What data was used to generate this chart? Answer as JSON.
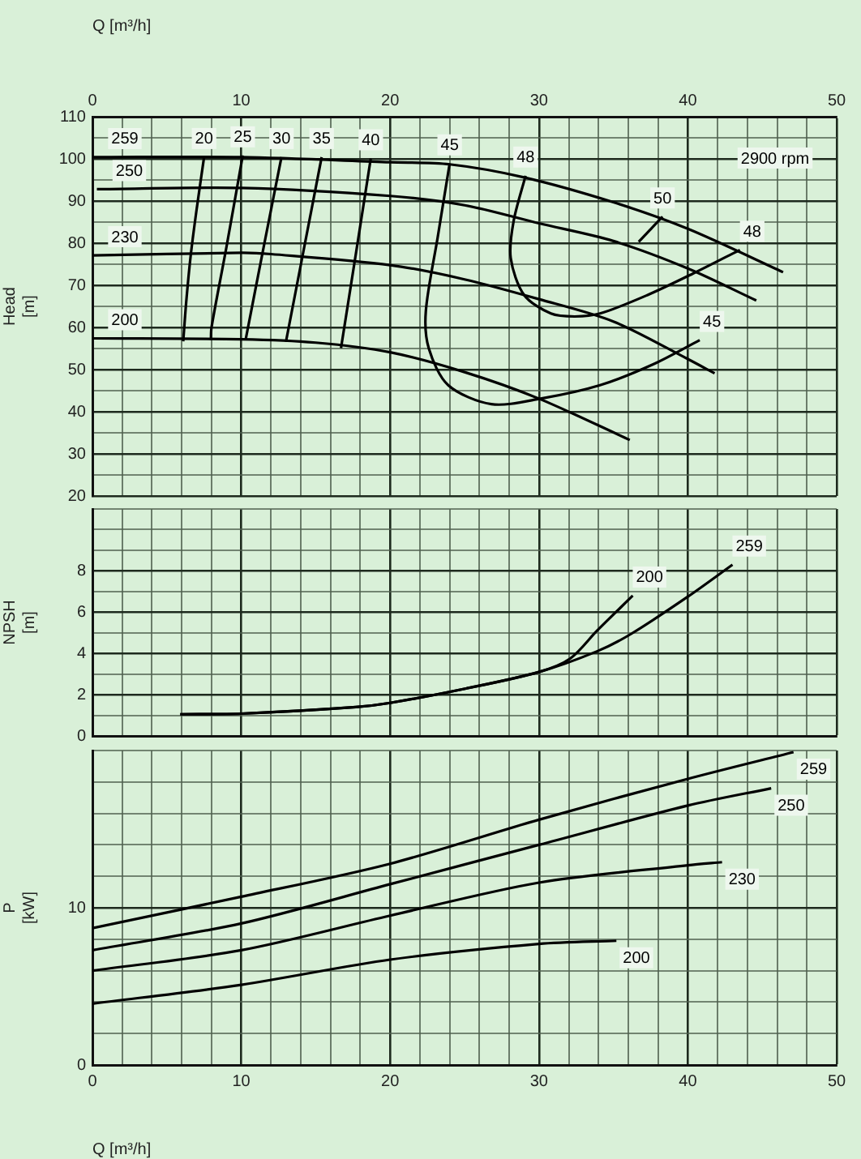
{
  "chart_data": [
    {
      "type": "line",
      "ylabel": "Head [m]",
      "xlabel": "Q [m³/h]",
      "xlim": [
        0,
        50
      ],
      "xticks": [
        0,
        {
          "value": 2,
          "label": null
        },
        {
          "value": 4,
          "label": null
        },
        {
          "value": 6,
          "label": null
        },
        {
          "value": 8,
          "label": null
        },
        10,
        {
          "value": 12,
          "label": null
        },
        {
          "value": 14,
          "label": null
        },
        {
          "value": 16,
          "label": null
        },
        {
          "value": 18,
          "label": null
        },
        20,
        {
          "value": 22,
          "label": null
        },
        {
          "value": 24,
          "label": null
        },
        {
          "value": 26,
          "label": null
        },
        {
          "value": 28,
          "label": null
        },
        30,
        {
          "value": 32,
          "label": null
        },
        {
          "value": 34,
          "label": null
        },
        {
          "value": 36,
          "label": null
        },
        {
          "value": 38,
          "label": null
        },
        40,
        {
          "value": 42,
          "label": null
        },
        {
          "value": 44,
          "label": null
        },
        {
          "value": 46,
          "label": null
        },
        {
          "value": 48,
          "label": null
        },
        50
      ],
      "ylim": [
        20,
        110
      ],
      "yticks": [
        20,
        {
          "value": 25,
          "label": null
        },
        30,
        {
          "value": 35,
          "label": null
        },
        40,
        {
          "value": 45,
          "label": null
        },
        50,
        {
          "value": 55,
          "label": null
        },
        60,
        {
          "value": 65,
          "label": null
        },
        70,
        {
          "value": 75,
          "label": null
        },
        80,
        {
          "value": 85,
          "label": null
        },
        90,
        {
          "value": 95,
          "label": null
        },
        100,
        {
          "value": 105,
          "label": null
        },
        110
      ],
      "grid": true,
      "marker": "none",
      "series": [
        {
          "name": "259",
          "color": "#000000",
          "x": [
            0,
            10,
            20,
            24,
            29,
            35,
            40,
            46.4
          ],
          "values": [
            100.4,
            100.4,
            99.2,
            98.7,
            95.6,
            89.7,
            83.4,
            73.1
          ]
        },
        {
          "name": "250",
          "color": "#000000",
          "x": [
            0.3,
            10,
            20,
            25,
            30,
            35,
            40,
            44.6
          ],
          "values": [
            92.8,
            93.1,
            91.2,
            89,
            84.7,
            80.5,
            74,
            66.4
          ]
        },
        {
          "name": "230",
          "color": "#000000",
          "x": [
            0,
            10,
            12,
            20,
            25,
            30,
            35,
            40,
            41.8
          ],
          "values": [
            77.1,
            77.7,
            77.4,
            74.8,
            71.4,
            66.7,
            61.4,
            52.5,
            49.1
          ]
        },
        {
          "name": "200",
          "color": "#000000",
          "x": [
            0,
            10,
            15,
            20,
            25,
            30,
            36.1
          ],
          "values": [
            57.4,
            57.2,
            56.4,
            54.1,
            49.4,
            43.1,
            33.3
          ]
        },
        {
          "name": "20",
          "color": "#000000",
          "x": [
            7.5,
            7,
            6.6,
            6.3,
            6.1
          ],
          "values": [
            100.4,
            88,
            77,
            66,
            56.7
          ]
        },
        {
          "name": "25",
          "color": "#000000",
          "x": [
            10.1,
            9,
            8,
            7.96
          ],
          "values": [
            100.8,
            79,
            60,
            57
          ]
        },
        {
          "name": "30",
          "color": "#000000",
          "x": [
            12.7,
            11.5,
            10.3
          ],
          "values": [
            100.4,
            79,
            57.2
          ]
        },
        {
          "name": "35",
          "color": "#000000",
          "x": [
            15.4,
            14.2,
            13
          ],
          "values": [
            100.4,
            78.5,
            56.6
          ]
        },
        {
          "name": "40",
          "color": "#000000",
          "x": [
            18.7,
            17.7,
            16.7
          ],
          "values": [
            100.1,
            77.5,
            55.1
          ]
        },
        {
          "name": "45",
          "color": "#000000",
          "x": [
            24,
            23.2,
            22.4,
            22.6,
            23.9,
            26.8,
            30.1,
            34.1,
            37.7,
            40.8
          ],
          "values": [
            98.9,
            81.5,
            63.9,
            55,
            46.3,
            41.8,
            43.1,
            46.3,
            51.3,
            57
          ]
        },
        {
          "name": "48",
          "color": "#000000",
          "x": [
            29.1,
            28.3,
            28.1,
            29,
            30.8,
            32.4,
            34.1,
            37.3,
            40.3,
            43.5
          ],
          "values": [
            96,
            85.3,
            76.5,
            67.7,
            63.3,
            62.6,
            63.3,
            67.7,
            72.7,
            78.4
          ]
        },
        {
          "name": "50",
          "color": "#000000",
          "x": [
            38.3,
            36.7
          ],
          "values": [
            86.3,
            80.3
          ]
        }
      ],
      "annotations": [
        "2900 rpm",
        {
          "text": "48",
          "x": 29.1,
          "y": 96
        },
        {
          "text": "45",
          "x": 24,
          "y": 98.9
        }
      ]
    },
    {
      "type": "line",
      "ylabel": "NPSH [m]",
      "xlim": [
        0,
        50
      ],
      "tick_labels": "y",
      "xticks": [
        0,
        {
          "value": 2,
          "label": null
        },
        {
          "value": 4,
          "label": null
        },
        {
          "value": 6,
          "label": null
        },
        {
          "value": 8,
          "label": null
        },
        10,
        {
          "value": 12,
          "label": null
        },
        {
          "value": 14,
          "label": null
        },
        {
          "value": 16,
          "label": null
        },
        {
          "value": 18,
          "label": null
        },
        20,
        {
          "value": 22,
          "label": null
        },
        {
          "value": 24,
          "label": null
        },
        {
          "value": 26,
          "label": null
        },
        {
          "value": 28,
          "label": null
        },
        30,
        {
          "value": 32,
          "label": null
        },
        {
          "value": 34,
          "label": null
        },
        {
          "value": 36,
          "label": null
        },
        {
          "value": 38,
          "label": null
        },
        40,
        {
          "value": 42,
          "label": null
        },
        {
          "value": 44,
          "label": null
        },
        {
          "value": 46,
          "label": null
        },
        {
          "value": 48,
          "label": null
        },
        50
      ],
      "ylim": [
        0,
        11
      ],
      "yticks": [
        0,
        {
          "value": 1,
          "label": null
        },
        2,
        {
          "value": 3,
          "label": null
        },
        4,
        {
          "value": 5,
          "label": null
        },
        6,
        {
          "value": 7,
          "label": null
        },
        8,
        {
          "value": 9,
          "label": null
        },
        {
          "value": 10,
          "label": null
        },
        {
          "value": 11,
          "label": null
        }
      ],
      "grid": true,
      "marker": "none",
      "series": [
        {
          "name": "259",
          "color": "#000000",
          "x": [
            5.9,
            10,
            17.7,
            20,
            25.1,
            30,
            33.9,
            36.2,
            40,
            43
          ],
          "values": [
            1.05,
            1.08,
            1.4,
            1.6,
            2.3,
            3.1,
            4.1,
            4.95,
            6.75,
            8.3
          ]
        },
        {
          "name": "200",
          "color": "#000000",
          "x": [
            5.9,
            10,
            17.7,
            20,
            25.1,
            30,
            32.1,
            33.9,
            36.3
          ],
          "values": [
            1.05,
            1.08,
            1.4,
            1.6,
            2.3,
            3.1,
            3.75,
            5.1,
            6.8
          ]
        }
      ]
    },
    {
      "type": "line",
      "ylabel": "P [kW]",
      "xlabel": "Q [m³/h]",
      "xlim": [
        0,
        50
      ],
      "xticks": [
        0,
        {
          "value": 2,
          "label": null
        },
        {
          "value": 4,
          "label": null
        },
        {
          "value": 6,
          "label": null
        },
        {
          "value": 8,
          "label": null
        },
        10,
        {
          "value": 12,
          "label": null
        },
        {
          "value": 14,
          "label": null
        },
        {
          "value": 16,
          "label": null
        },
        {
          "value": 18,
          "label": null
        },
        20,
        {
          "value": 22,
          "label": null
        },
        {
          "value": 24,
          "label": null
        },
        {
          "value": 26,
          "label": null
        },
        {
          "value": 28,
          "label": null
        },
        30,
        {
          "value": 32,
          "label": null
        },
        {
          "value": 34,
          "label": null
        },
        {
          "value": 36,
          "label": null
        },
        {
          "value": 38,
          "label": null
        },
        40,
        {
          "value": 42,
          "label": null
        },
        {
          "value": 44,
          "label": null
        },
        {
          "value": 46,
          "label": null
        },
        {
          "value": 48,
          "label": null
        },
        50
      ],
      "ylim": [
        0,
        20
      ],
      "yticks": [
        0,
        {
          "value": 2,
          "label": null
        },
        {
          "value": 4,
          "label": null
        },
        {
          "value": 6,
          "label": null
        },
        {
          "value": 8,
          "label": null
        },
        10,
        {
          "value": 12,
          "label": null
        },
        {
          "value": 14,
          "label": null
        },
        {
          "value": 16,
          "label": null
        },
        {
          "value": 18,
          "label": null
        },
        {
          "value": 20,
          "label": null
        }
      ],
      "grid": true,
      "marker": "none",
      "series": [
        {
          "name": "259",
          "color": "#000000",
          "x": [
            0,
            10,
            20,
            30,
            40,
            47.1
          ],
          "values": [
            8.7,
            10.7,
            12.8,
            15.6,
            18.2,
            19.9
          ]
        },
        {
          "name": "250",
          "color": "#000000",
          "x": [
            0,
            10,
            20,
            30,
            40,
            45.6
          ],
          "values": [
            7.3,
            9,
            11.5,
            14,
            16.5,
            17.6
          ]
        },
        {
          "name": "230",
          "color": "#000000",
          "x": [
            0,
            10,
            20,
            30,
            40,
            42.3
          ],
          "values": [
            6,
            7.3,
            9.5,
            11.6,
            12.7,
            12.9
          ]
        },
        {
          "name": "200",
          "color": "#000000",
          "x": [
            0,
            10,
            20,
            30,
            35.2
          ],
          "values": [
            3.9,
            5.1,
            6.7,
            7.7,
            7.9
          ]
        }
      ]
    }
  ]
}
